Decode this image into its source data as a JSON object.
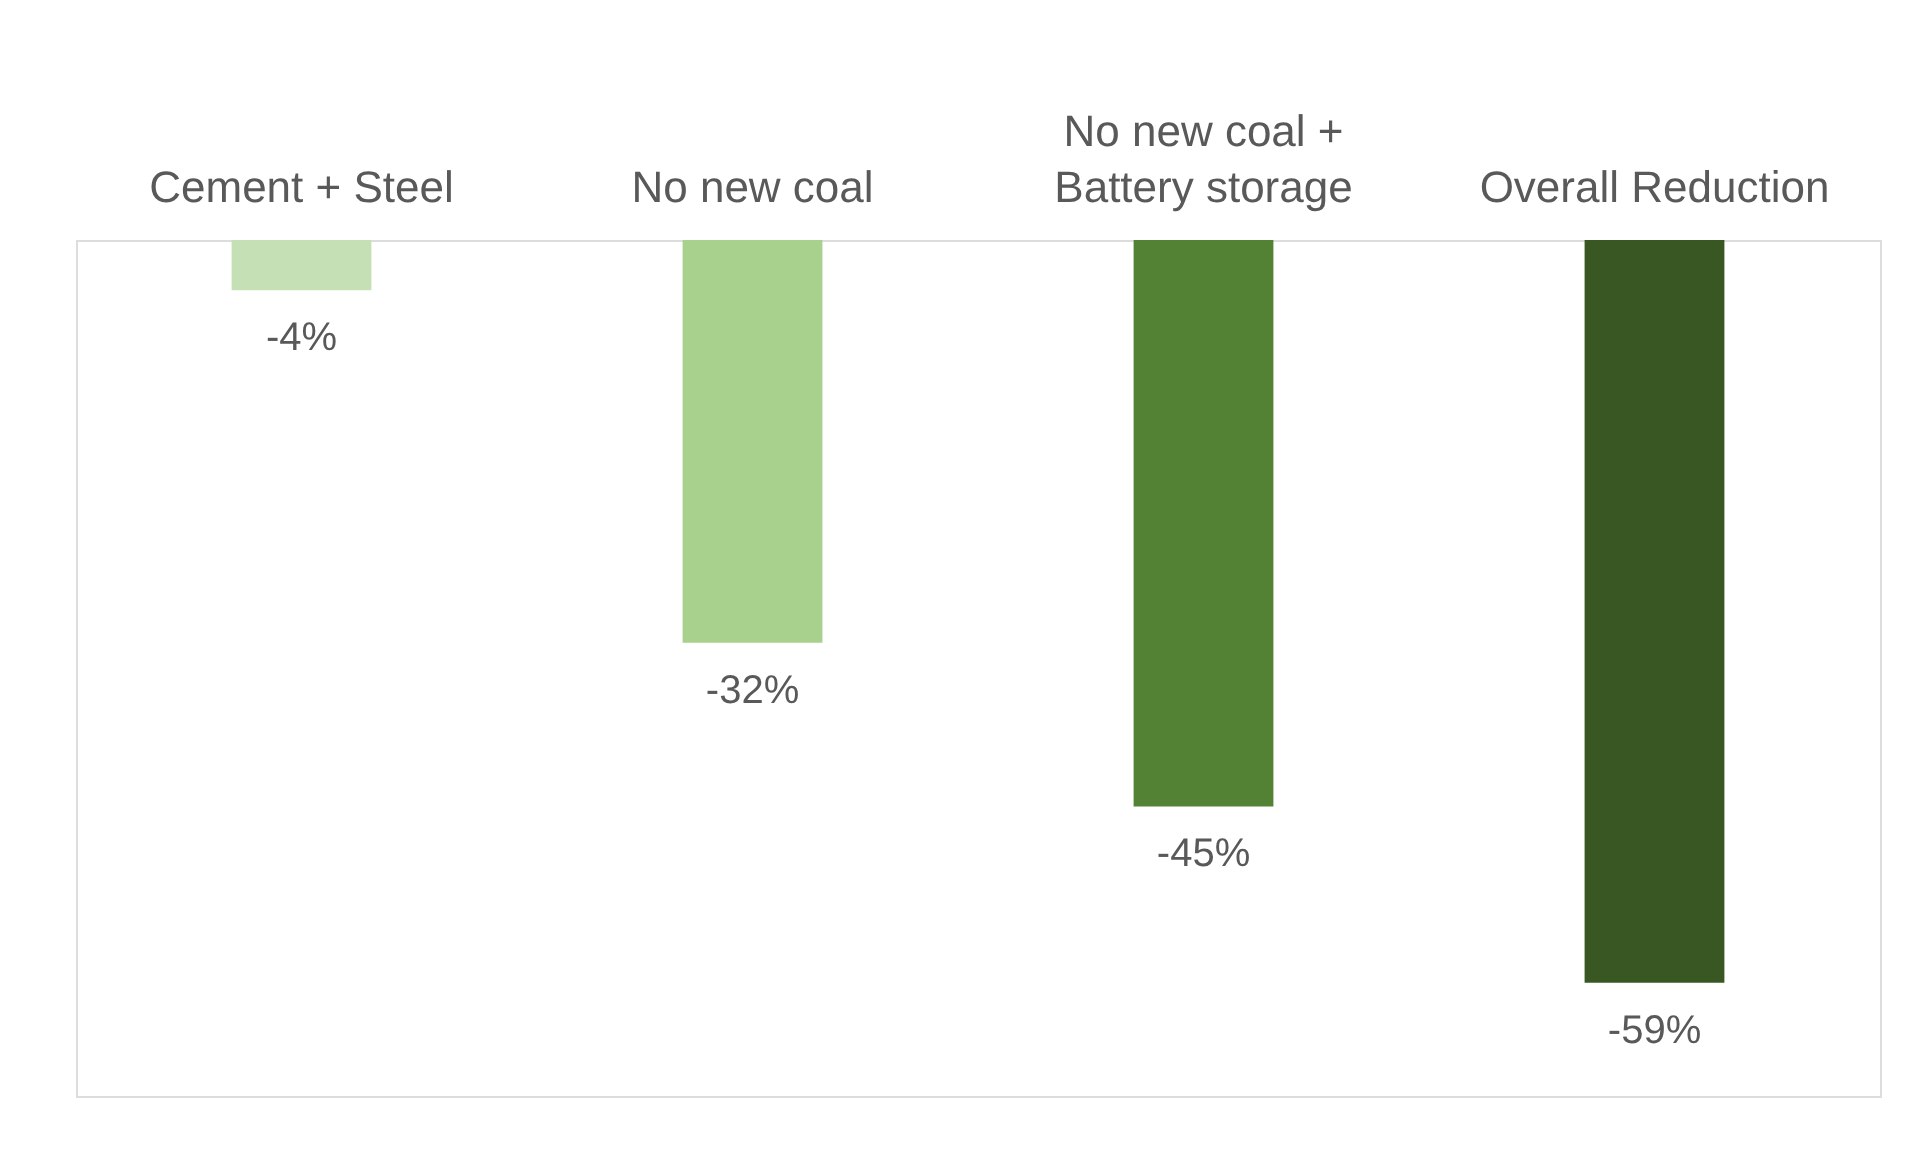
{
  "chart_data": {
    "type": "bar",
    "categories": [
      "Cement + Steel",
      "No new coal",
      "No new coal +\nBattery storage",
      "Overall Reduction"
    ],
    "values": [
      -4,
      -32,
      -45,
      -59
    ],
    "colors": [
      "#c5e0b4",
      "#a9d18e",
      "#548235",
      "#385723"
    ],
    "ylim": [
      -68,
      0
    ],
    "data_labels": true,
    "value_labels": [
      "-4%",
      "-32%",
      "-45%",
      "-59%"
    ],
    "grid": false,
    "tick_labels": "x"
  }
}
